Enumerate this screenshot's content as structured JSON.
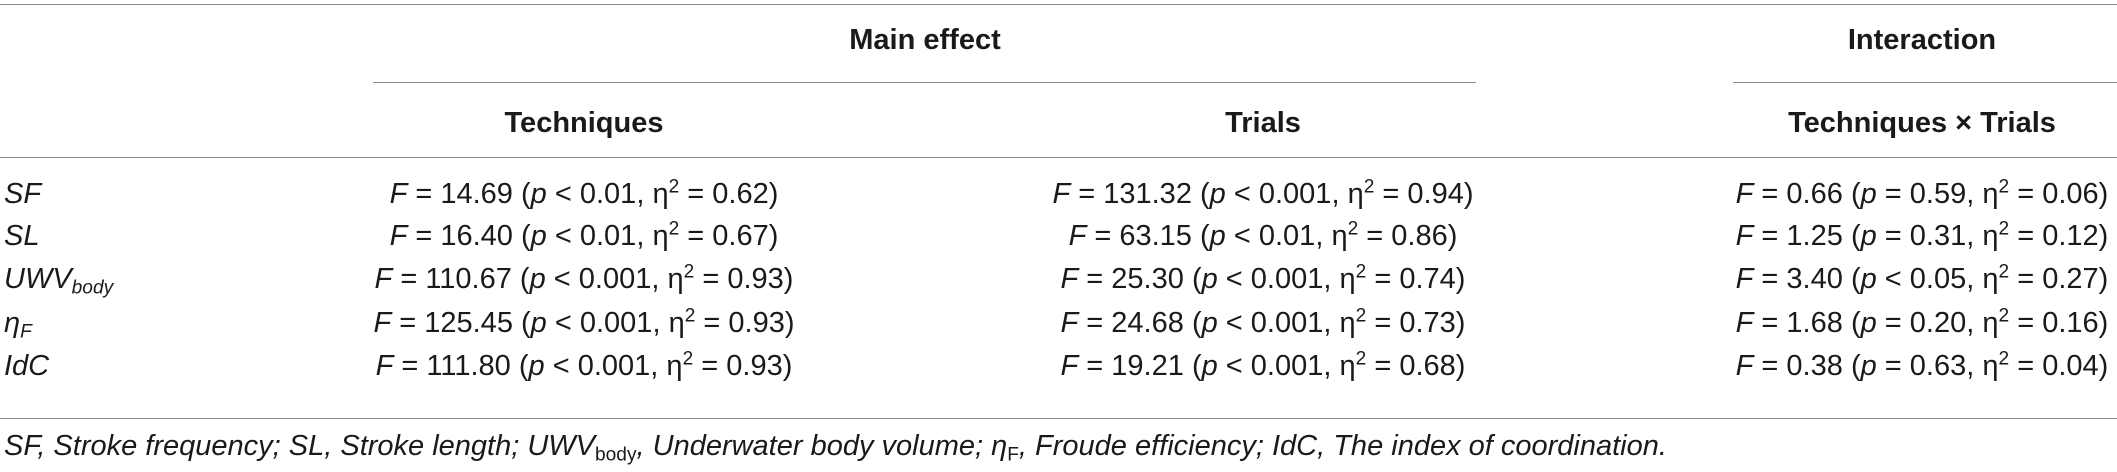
{
  "table": {
    "group_headers": {
      "main_effect": "Main effect",
      "interaction": "Interaction"
    },
    "column_headers": {
      "techniques": "Techniques",
      "trials": "Trials",
      "techniques_x_trials": "Techniques × Trials"
    },
    "rows": [
      {
        "label": "SF",
        "label_sub": "",
        "techniques": {
          "F": "14.69",
          "p_op": "<",
          "p": "0.01",
          "eta2": "0.62"
        },
        "trials": {
          "F": "131.32",
          "p_op": "<",
          "p": "0.001",
          "eta2": "0.94"
        },
        "interaction": {
          "F": "0.66",
          "p_op": "=",
          "p": "0.59",
          "eta2": "0.06"
        }
      },
      {
        "label": "SL",
        "label_sub": "",
        "techniques": {
          "F": "16.40",
          "p_op": "<",
          "p": "0.01",
          "eta2": "0.67"
        },
        "trials": {
          "F": "63.15",
          "p_op": "<",
          "p": "0.01",
          "eta2": "0.86"
        },
        "interaction": {
          "F": "1.25",
          "p_op": "=",
          "p": "0.31",
          "eta2": "0.12"
        }
      },
      {
        "label": "UWV",
        "label_sub": "body",
        "techniques": {
          "F": "110.67",
          "p_op": "<",
          "p": "0.001",
          "eta2": "0.93"
        },
        "trials": {
          "F": "25.30",
          "p_op": "<",
          "p": "0.001",
          "eta2": "0.74"
        },
        "interaction": {
          "F": "3.40",
          "p_op": "<",
          "p": "0.05",
          "eta2": "0.27"
        }
      },
      {
        "label": "η",
        "label_sub": "F",
        "techniques": {
          "F": "125.45",
          "p_op": "<",
          "p": "0.001",
          "eta2": "0.93"
        },
        "trials": {
          "F": "24.68",
          "p_op": "<",
          "p": "0.001",
          "eta2": "0.73"
        },
        "interaction": {
          "F": "1.68",
          "p_op": "=",
          "p": "0.20",
          "eta2": "0.16"
        }
      },
      {
        "label": "IdC",
        "label_sub": "",
        "techniques": {
          "F": "111.80",
          "p_op": "<",
          "p": "0.001",
          "eta2": "0.93"
        },
        "trials": {
          "F": "19.21",
          "p_op": "<",
          "p": "0.001",
          "eta2": "0.68"
        },
        "interaction": {
          "F": "0.38",
          "p_op": "=",
          "p": "0.63",
          "eta2": "0.04"
        }
      }
    ],
    "symbols": {
      "F": "F",
      "p": "p",
      "eta": "η",
      "eta_sup": "2"
    }
  },
  "footnote": {
    "p1": "SF, Stroke frequency; SL, Stroke length; UWV",
    "p1_sub": "body",
    "p2": ", Underwater body volume; η",
    "p2_sub": "F",
    "p3": ", Froude efficiency; IdC, The index of coordination."
  }
}
